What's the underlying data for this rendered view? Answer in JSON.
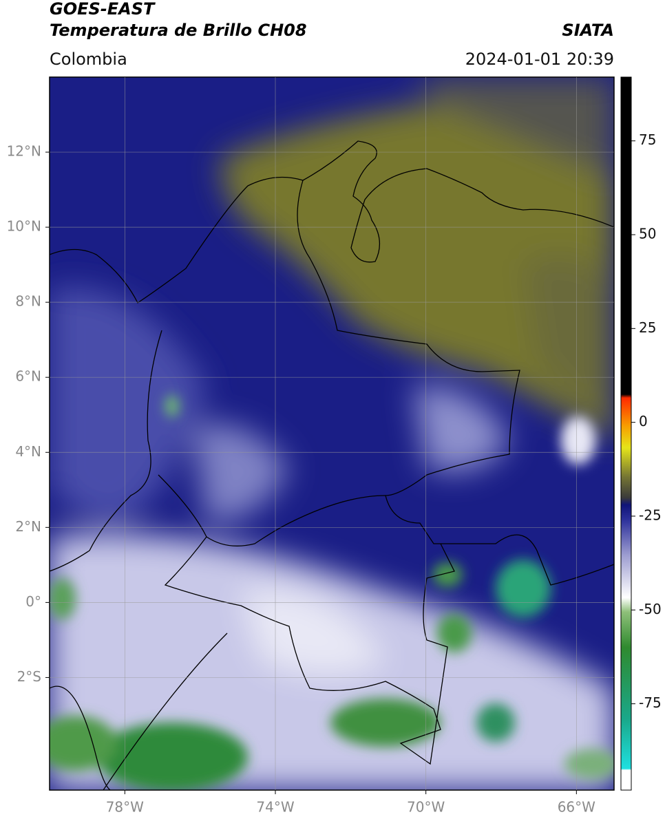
{
  "header": {
    "title": "GOES-EAST",
    "subtitle": "Temperatura de Brillo CH08",
    "source": "SIATA",
    "region": "Colombia",
    "datetime": "2024-01-01 20:39"
  },
  "map": {
    "xlim": [
      -80,
      -65
    ],
    "ylim": [
      -5,
      14
    ],
    "xticks": [
      {
        "value": -78,
        "label": "78°W"
      },
      {
        "value": -74,
        "label": "74°W"
      },
      {
        "value": -70,
        "label": "70°W"
      },
      {
        "value": -66,
        "label": "66°W"
      }
    ],
    "yticks": [
      {
        "value": 12,
        "label": "12°N"
      },
      {
        "value": 10,
        "label": "10°N"
      },
      {
        "value": 8,
        "label": "8°N"
      },
      {
        "value": 6,
        "label": "6°N"
      },
      {
        "value": 4,
        "label": "4°N"
      },
      {
        "value": 2,
        "label": "2°N"
      },
      {
        "value": 0,
        "label": "0°"
      },
      {
        "value": -2,
        "label": "2°S"
      }
    ]
  },
  "colorbar": {
    "lim": [
      -98,
      92
    ],
    "ticks": [
      75,
      50,
      25,
      0,
      -25,
      -50,
      -75
    ]
  }
}
